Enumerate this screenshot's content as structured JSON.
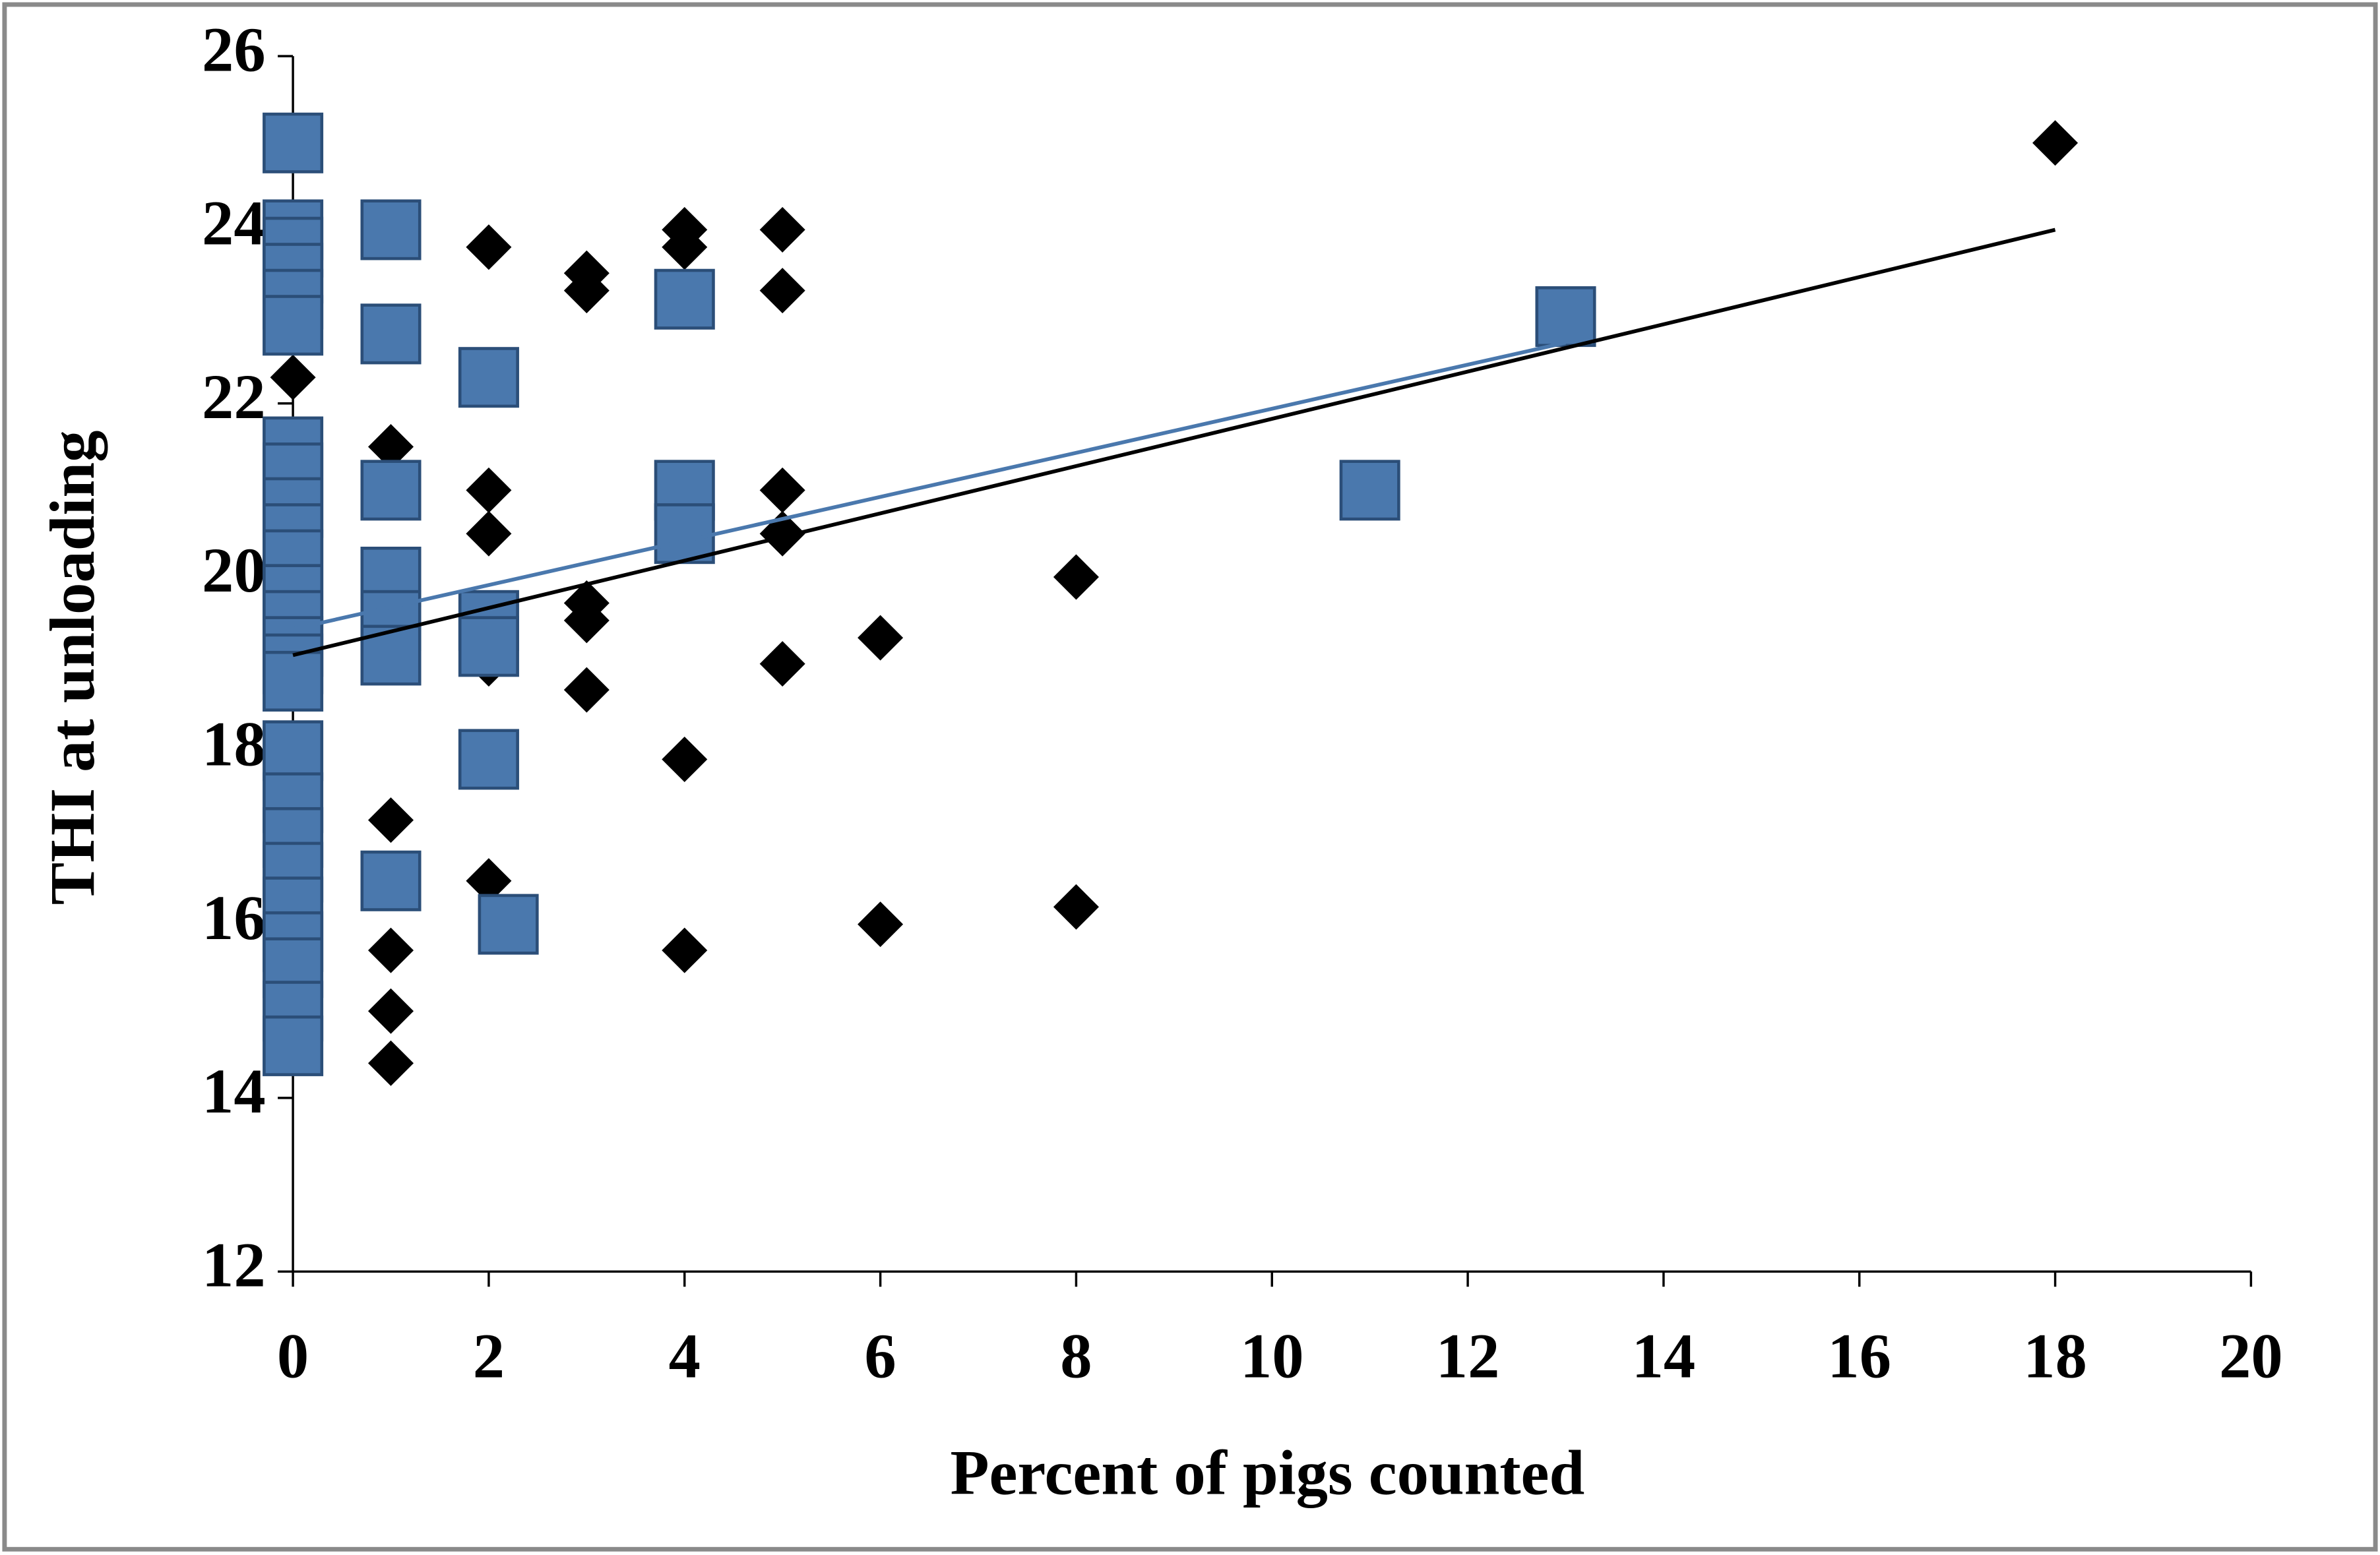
{
  "chart_data": {
    "type": "scatter",
    "xlabel": "Percent of pigs counted",
    "ylabel": "THI at unloading",
    "xlim": [
      0,
      20
    ],
    "xticks": [
      0,
      2,
      4,
      6,
      8,
      10,
      12,
      14,
      16,
      18,
      20
    ],
    "ylim": [
      12,
      26
    ],
    "yticks": [
      12,
      14,
      16,
      18,
      20,
      22,
      24,
      26
    ],
    "series": [
      {
        "color": "#000000",
        "marker": "diamond",
        "x": [
          0,
          1,
          1,
          1,
          1,
          1,
          2,
          2,
          2,
          2,
          2,
          3,
          3,
          3,
          3,
          3,
          4,
          4,
          4,
          4,
          5,
          5,
          5,
          5,
          5,
          6,
          6,
          8,
          8,
          18
        ],
        "y": [
          22.3,
          21.5,
          17.2,
          15.7,
          15,
          14.4,
          23.8,
          21,
          20.5,
          19,
          16.5,
          23.5,
          23.3,
          19.7,
          19.5,
          18.7,
          24,
          23.8,
          17.9,
          15.7,
          24,
          23.3,
          21,
          20.5,
          19,
          19.3,
          16,
          20,
          16.2,
          25
        ]
      },
      {
        "color": "#4a78ad",
        "marker": "square",
        "x": [
          0,
          0,
          0,
          0,
          0,
          0,
          0,
          0,
          0,
          0,
          0,
          0,
          0,
          0,
          0,
          0,
          0,
          0,
          0,
          0,
          0,
          0,
          0,
          0,
          0,
          1,
          1,
          1,
          1,
          1,
          1,
          1,
          2,
          2,
          2,
          2,
          2.2,
          4,
          4,
          4,
          11,
          13
        ],
        "y": [
          25,
          24,
          23.8,
          23.5,
          23.2,
          22.9,
          21.5,
          21.2,
          20.8,
          20.5,
          20.2,
          19.8,
          19.5,
          19.2,
          19,
          18.8,
          18,
          17.4,
          17,
          16.6,
          16.2,
          15.8,
          15.5,
          15,
          14.6,
          24,
          22.8,
          21,
          20,
          19.5,
          19.1,
          16.5,
          22.3,
          19.5,
          19.2,
          17.9,
          16,
          23.2,
          21,
          20.5,
          21,
          23
        ]
      }
    ],
    "trendlines": [
      {
        "color": "#000000",
        "x": [
          0,
          18
        ],
        "y": [
          19.1,
          24
        ]
      },
      {
        "color": "#4a78ad",
        "x": [
          0,
          13
        ],
        "y": [
          19.4,
          22.7
        ]
      }
    ]
  }
}
